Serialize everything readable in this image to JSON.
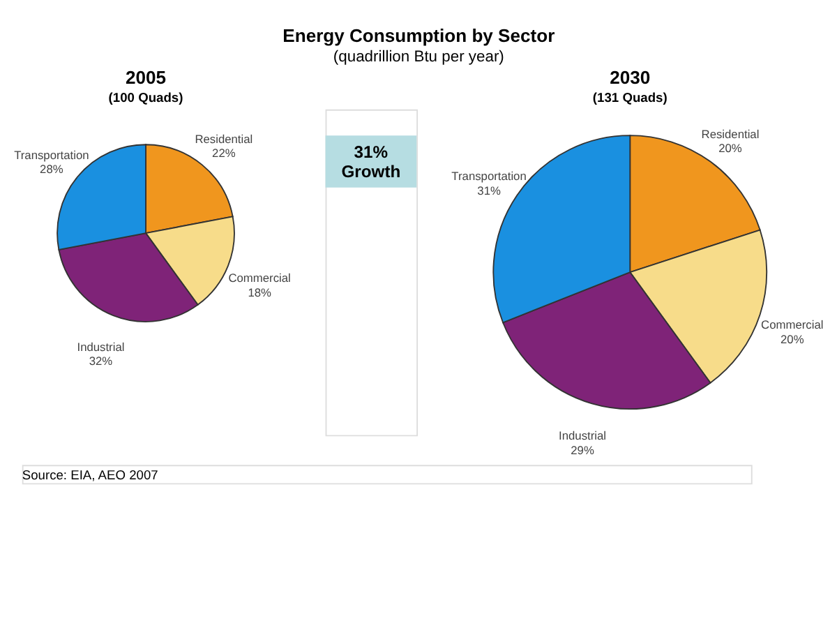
{
  "chart_data": [
    {
      "type": "other",
      "title": "Energy Consumption by Sector",
      "subtitle": "(quadrillion Btu per year)",
      "annotations": [
        "31% Growth",
        "Source: EIA, AEO 2007"
      ]
    },
    {
      "type": "pie",
      "title": "2005",
      "subtitle": "(100 Quads)",
      "categories": [
        "Residential",
        "Commercial",
        "Industrial",
        "Transportation"
      ],
      "values": [
        22,
        18,
        32,
        28
      ],
      "colors": [
        "#f0961e",
        "#f7dc8a",
        "#7f2378",
        "#1a90e0"
      ],
      "value_labels": [
        "22%",
        "18%",
        "32%",
        "28%"
      ]
    },
    {
      "type": "pie",
      "title": "2030",
      "subtitle": "(131 Quads)",
      "categories": [
        "Residential",
        "Commercial",
        "Industrial",
        "Transportation"
      ],
      "values": [
        20,
        20,
        29,
        31
      ],
      "colors": [
        "#f0961e",
        "#f7dc8a",
        "#7f2378",
        "#1a90e0"
      ],
      "value_labels": [
        "20%",
        "20%",
        "29%",
        "31%"
      ]
    }
  ]
}
